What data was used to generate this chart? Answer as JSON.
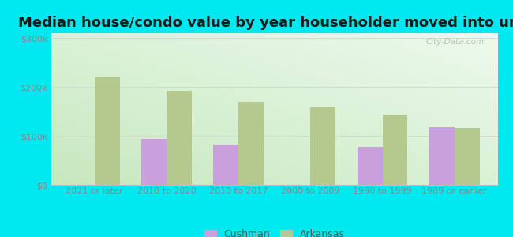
{
  "title": "Median house/condo value by year householder moved into unit",
  "categories": [
    "2021 or later",
    "2018 to 2020",
    "2010 to 2017",
    "2000 to 2009",
    "1990 to 1999",
    "1989 or earlier"
  ],
  "cushman_values": [
    null,
    93000,
    83000,
    null,
    78000,
    118000
  ],
  "arkansas_values": [
    222000,
    192000,
    170000,
    158000,
    143000,
    116000
  ],
  "cushman_color": "#c9a0dc",
  "arkansas_color": "#b5c98e",
  "background_outer": "#00e8f0",
  "ylabel_ticks": [
    "$0",
    "$100k",
    "$200k",
    "$300k"
  ],
  "ytick_values": [
    0,
    100000,
    200000,
    300000
  ],
  "ylim": [
    0,
    310000
  ],
  "bar_width": 0.35,
  "legend_labels": [
    "Cushman",
    "Arkansas"
  ],
  "watermark": "City-Data.com",
  "title_fontsize": 13,
  "tick_fontsize": 8,
  "legend_fontsize": 9
}
